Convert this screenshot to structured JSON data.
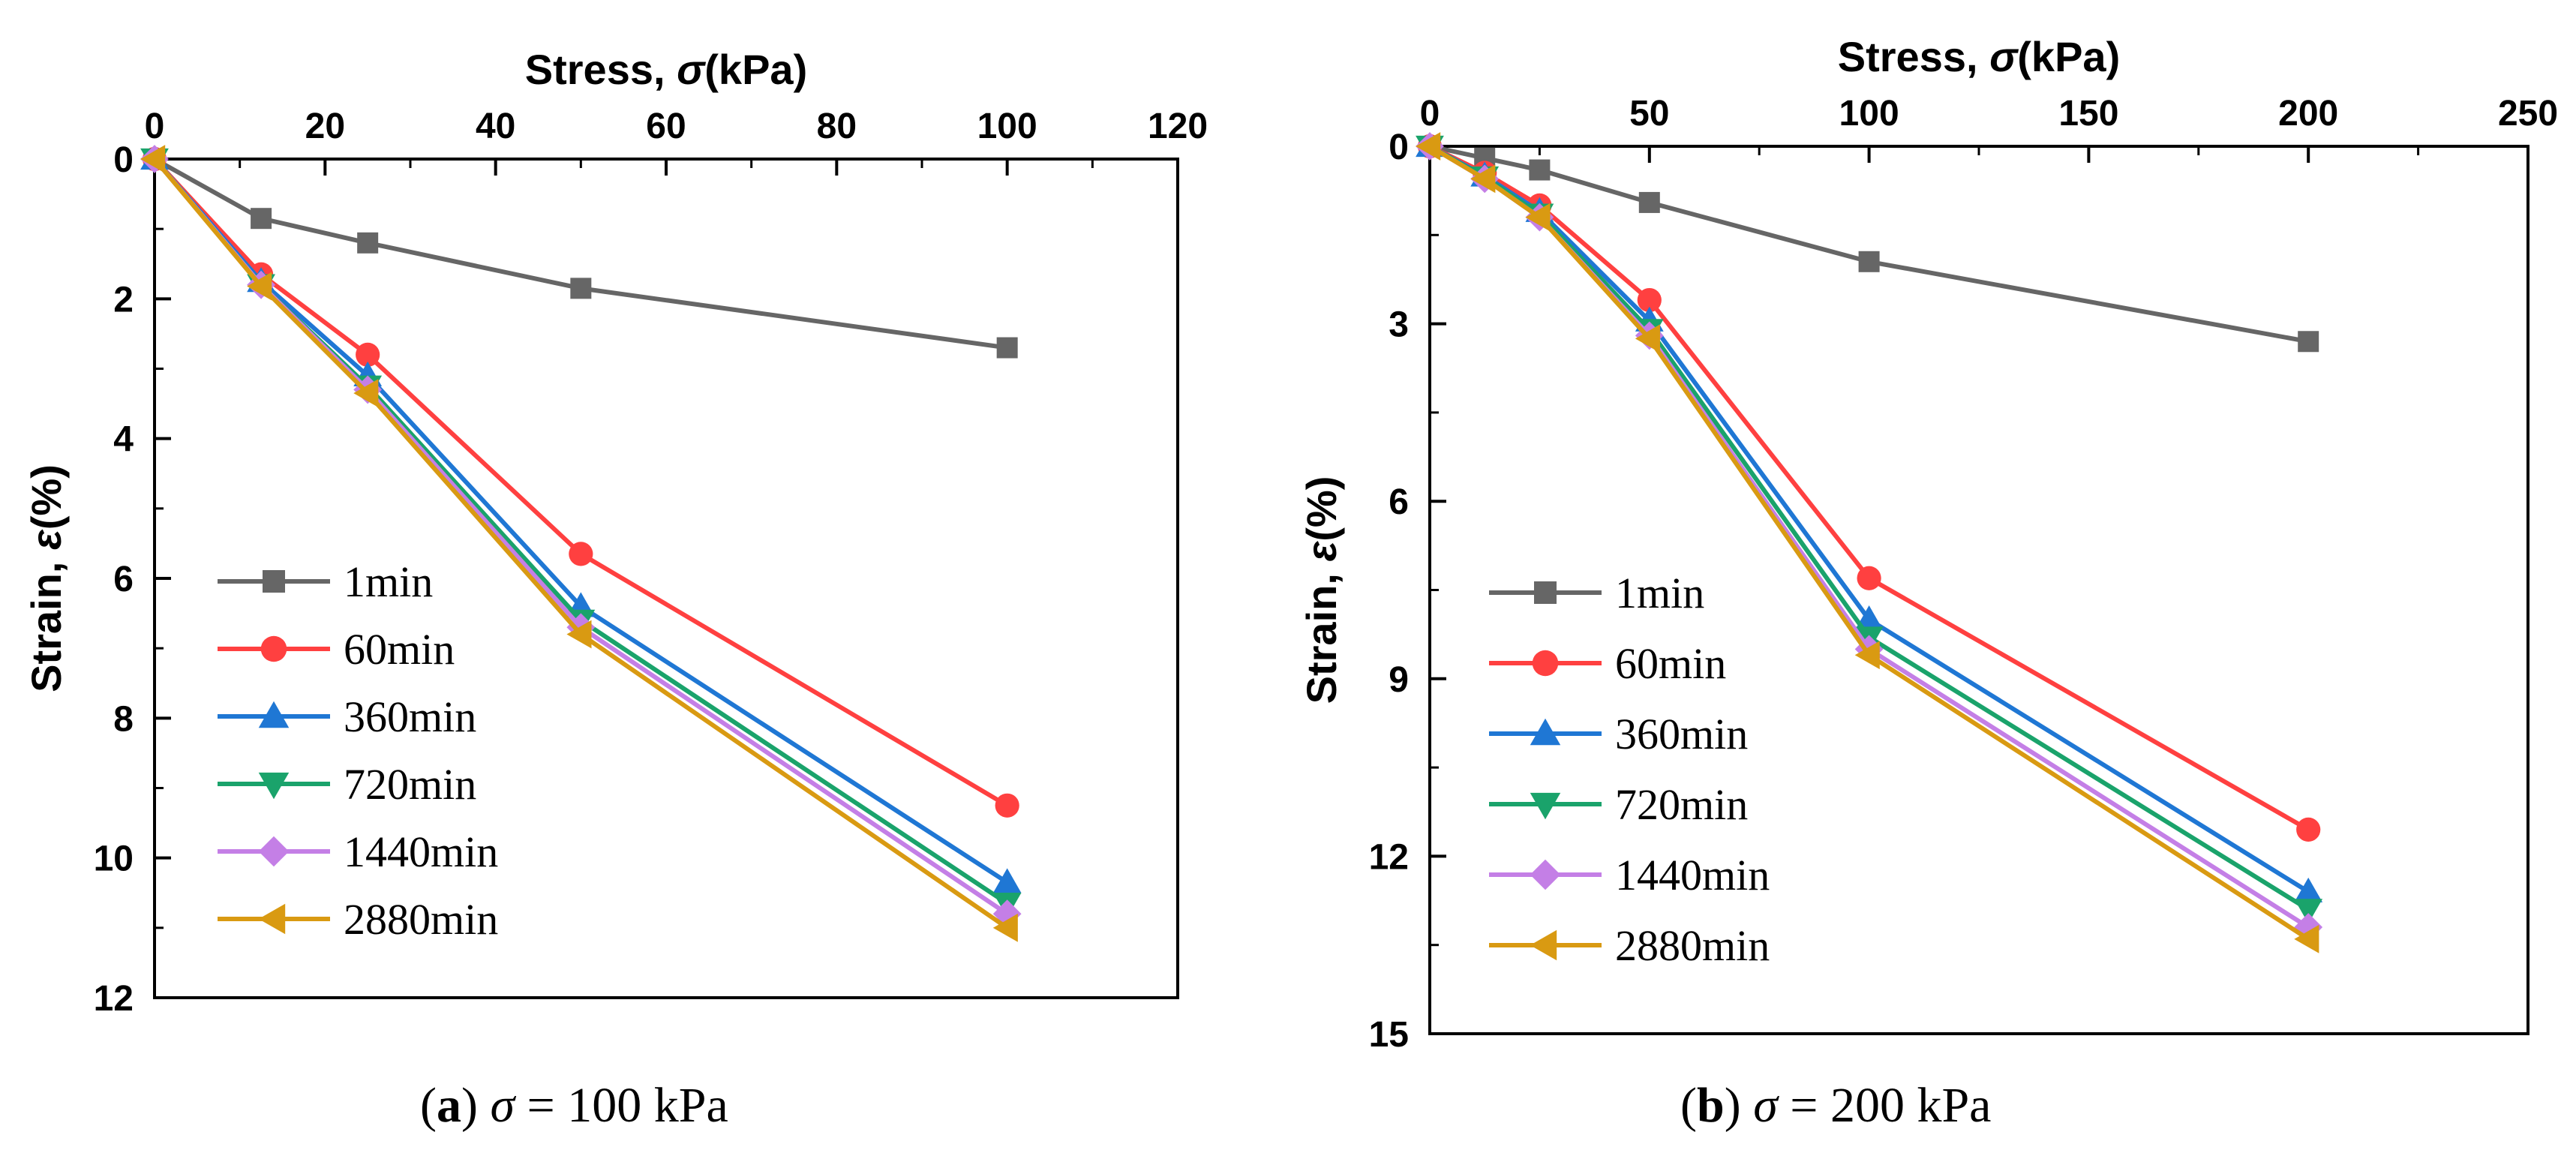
{
  "chart_data": [
    {
      "type": "line",
      "panel": "a",
      "caption_letter": "a",
      "caption_text": "σ = 100 kPa",
      "xlabel": "Stress, σ(kPa)",
      "ylabel": "Strain, ε(%)",
      "xlim": [
        0,
        120
      ],
      "ylim": [
        0,
        12
      ],
      "y_inverted": true,
      "x_axis_position": "top",
      "xticks": [
        0,
        20,
        40,
        60,
        80,
        100,
        120
      ],
      "yticks": [
        0,
        2,
        4,
        6,
        8,
        10,
        12
      ],
      "legend_position": "bottom-left",
      "series": [
        {
          "name": "1min",
          "color": "#666666",
          "marker": "square",
          "x": [
            0,
            12.5,
            25,
            50,
            100
          ],
          "y": [
            0,
            0.85,
            1.2,
            1.85,
            2.7
          ]
        },
        {
          "name": "60min",
          "color": "#ff4040",
          "marker": "circle",
          "x": [
            0,
            12.5,
            25,
            50,
            100
          ],
          "y": [
            0,
            1.65,
            2.8,
            5.65,
            9.25
          ]
        },
        {
          "name": "360min",
          "color": "#1f77d4",
          "marker": "triangle-up",
          "x": [
            0,
            12.5,
            25,
            50,
            100
          ],
          "y": [
            0,
            1.75,
            3.1,
            6.4,
            10.35
          ]
        },
        {
          "name": "720min",
          "color": "#1aa36b",
          "marker": "triangle-down",
          "x": [
            0,
            12.5,
            25,
            50,
            100
          ],
          "y": [
            0,
            1.8,
            3.25,
            6.6,
            10.65
          ]
        },
        {
          "name": "1440min",
          "color": "#c47fe6",
          "marker": "diamond",
          "x": [
            0,
            12.5,
            25,
            50,
            100
          ],
          "y": [
            0,
            1.8,
            3.3,
            6.7,
            10.8
          ]
        },
        {
          "name": "2880min",
          "color": "#d99a12",
          "marker": "triangle-left",
          "x": [
            0,
            12.5,
            25,
            50,
            100
          ],
          "y": [
            0,
            1.82,
            3.35,
            6.8,
            11.0
          ]
        }
      ]
    },
    {
      "type": "line",
      "panel": "b",
      "caption_letter": "b",
      "caption_text": "σ = 200 kPa",
      "xlabel": "Stress, σ(kPa)",
      "ylabel": "Strain, ε(%)",
      "xlim": [
        0,
        250
      ],
      "ylim": [
        0,
        15
      ],
      "y_inverted": true,
      "x_axis_position": "top",
      "xticks": [
        0,
        50,
        100,
        150,
        200,
        250
      ],
      "yticks": [
        0,
        3,
        6,
        9,
        12,
        15
      ],
      "legend_position": "bottom-left",
      "series": [
        {
          "name": "1min",
          "color": "#666666",
          "marker": "square",
          "x": [
            0,
            12.5,
            25,
            50,
            100,
            200
          ],
          "y": [
            0,
            0.2,
            0.4,
            0.95,
            1.95,
            3.3
          ]
        },
        {
          "name": "60min",
          "color": "#ff4040",
          "marker": "circle",
          "x": [
            0,
            12.5,
            25,
            50,
            100,
            200
          ],
          "y": [
            0,
            0.45,
            1.0,
            2.6,
            7.3,
            11.55
          ]
        },
        {
          "name": "360min",
          "color": "#1f77d4",
          "marker": "triangle-up",
          "x": [
            0,
            12.5,
            25,
            50,
            100,
            200
          ],
          "y": [
            0,
            0.5,
            1.1,
            2.95,
            8.0,
            12.6
          ]
        },
        {
          "name": "720min",
          "color": "#1aa36b",
          "marker": "triangle-down",
          "x": [
            0,
            12.5,
            25,
            50,
            100,
            200
          ],
          "y": [
            0,
            0.52,
            1.15,
            3.1,
            8.3,
            12.9
          ]
        },
        {
          "name": "1440min",
          "color": "#c47fe6",
          "marker": "diamond",
          "x": [
            0,
            12.5,
            25,
            50,
            100,
            200
          ],
          "y": [
            0,
            0.55,
            1.2,
            3.2,
            8.5,
            13.2
          ]
        },
        {
          "name": "2880min",
          "color": "#d99a12",
          "marker": "triangle-left",
          "x": [
            0,
            12.5,
            25,
            50,
            100,
            200
          ],
          "y": [
            0,
            0.55,
            1.2,
            3.25,
            8.6,
            13.4
          ]
        }
      ]
    }
  ]
}
